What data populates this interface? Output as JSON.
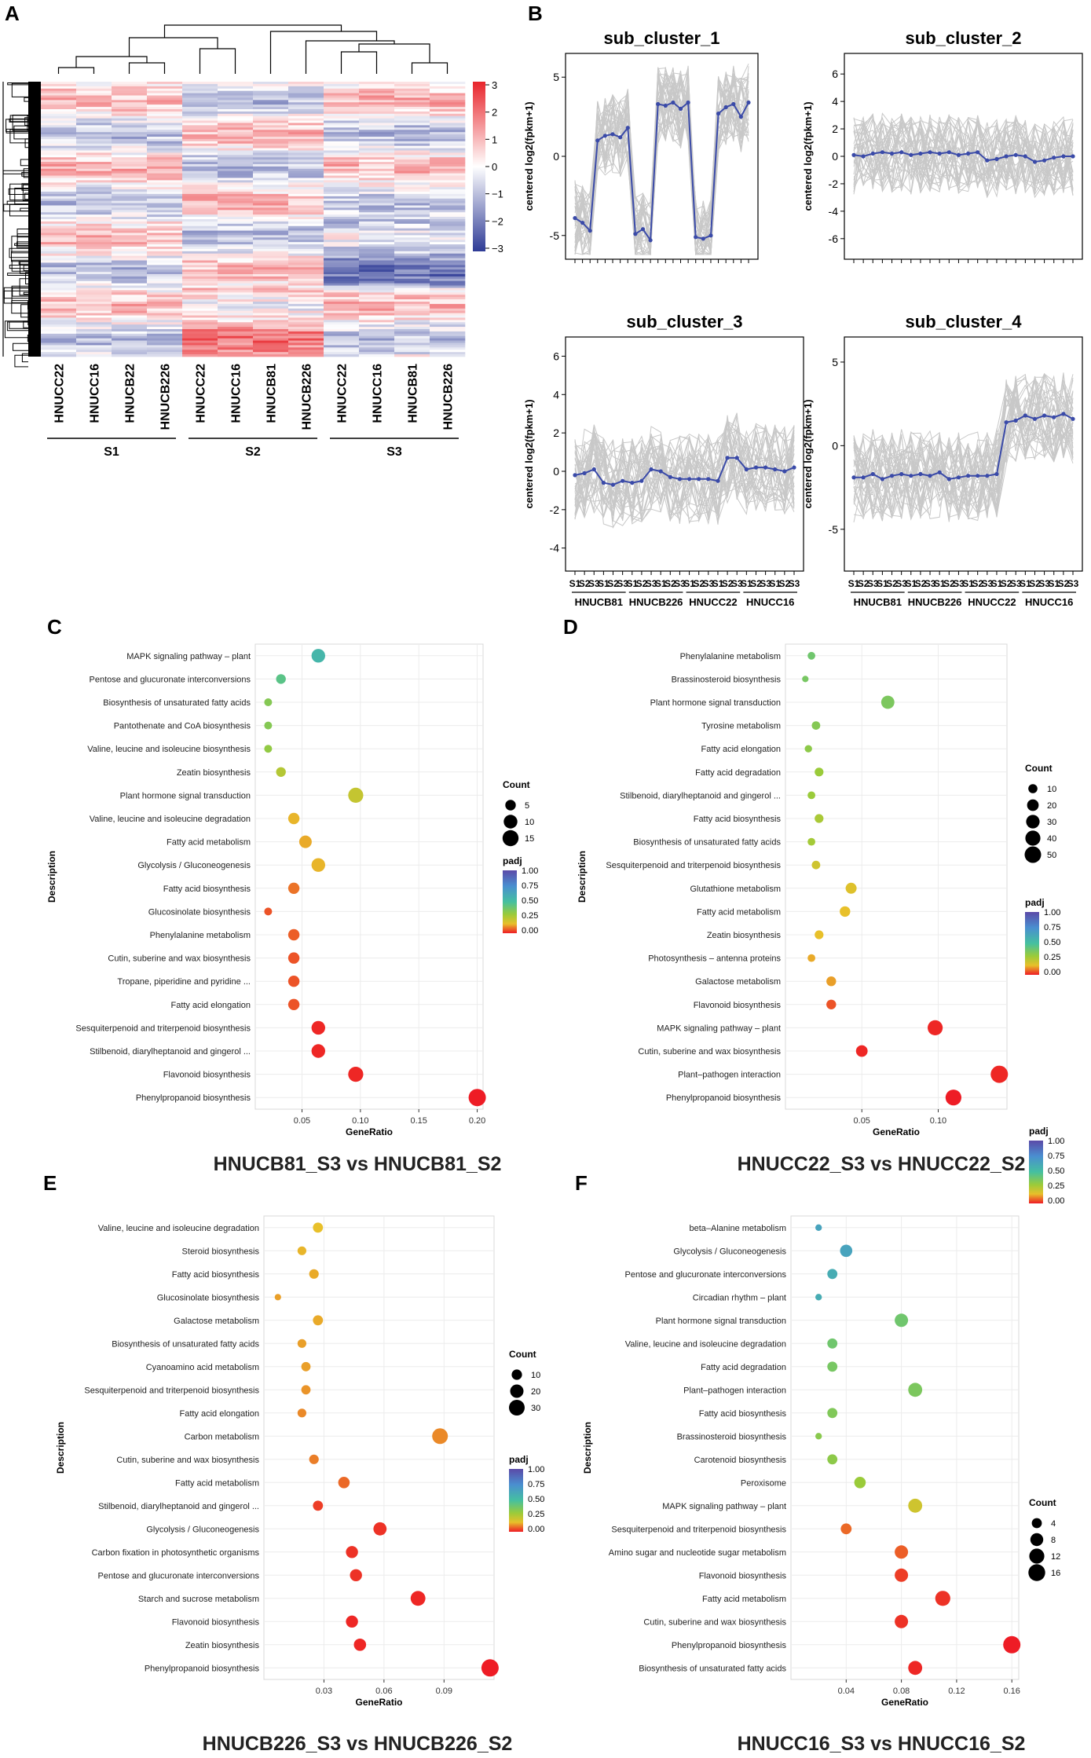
{
  "panels": {
    "A": {
      "label": "A",
      "samples": [
        "HNUCC22",
        "HNUCC16",
        "HNUCB22",
        "HNUCB226",
        "HNUCC22",
        "HNUCC16",
        "HNUCB81",
        "HNUCB226",
        "HNUCC22",
        "HNUCC16",
        "HNUCB81",
        "HNUCB226"
      ],
      "groups": [
        "S1",
        "S2",
        "S3"
      ],
      "scale_ticks": [
        "3",
        "2",
        "1",
        "0",
        "−1",
        "−2",
        "−3"
      ],
      "colors": {
        "high": "#e8252b",
        "mid": "#ffffff",
        "low": "#2e3b96"
      }
    },
    "B": {
      "label": "B",
      "ylabel": "centered log2(fpkm+1)",
      "stage_ticks": [
        "S1",
        "S2",
        "S3"
      ],
      "cultivars": [
        "HNUCB81",
        "HNUCB226",
        "HNUCC22",
        "HNUCC16"
      ],
      "line_color": "#3a4aa8",
      "bg_line_color": "#c8c8c8"
    }
  },
  "chart_data": [
    {
      "panel": "B",
      "type": "line",
      "title": "sub_cluster_1",
      "ylim": [
        -6.5,
        6.5
      ],
      "yticks": [
        -5,
        0,
        5
      ],
      "x": [
        1,
        2,
        3,
        4,
        5,
        6,
        7,
        8,
        9,
        10,
        11,
        12,
        13,
        14,
        15,
        16,
        17,
        18,
        19,
        20,
        21,
        22,
        23,
        24
      ],
      "values": [
        -3.9,
        -4.2,
        -4.7,
        1.0,
        1.3,
        1.4,
        1.2,
        1.8,
        -4.9,
        -4.6,
        -5.3,
        3.3,
        3.2,
        3.4,
        3.0,
        3.4,
        -5.1,
        -5.2,
        -5.0,
        2.7,
        3.1,
        3.3,
        2.5,
        3.4
      ]
    },
    {
      "panel": "B",
      "type": "line",
      "title": "sub_cluster_2",
      "ylim": [
        -7.5,
        7.5
      ],
      "yticks": [
        -6,
        -4,
        -2,
        0,
        2,
        4,
        6
      ],
      "x": [
        1,
        2,
        3,
        4,
        5,
        6,
        7,
        8,
        9,
        10,
        11,
        12,
        13,
        14,
        15,
        16,
        17,
        18,
        19,
        20,
        21,
        22,
        23,
        24
      ],
      "values": [
        0.1,
        0.0,
        0.2,
        0.3,
        0.2,
        0.3,
        0.1,
        0.2,
        0.3,
        0.2,
        0.3,
        0.1,
        0.2,
        0.3,
        -0.3,
        -0.2,
        0.0,
        0.1,
        0.0,
        -0.4,
        -0.3,
        -0.1,
        0.0,
        0.0
      ]
    },
    {
      "panel": "B",
      "type": "line",
      "title": "sub_cluster_3",
      "ylim": [
        -5.2,
        7
      ],
      "yticks": [
        -4,
        -2,
        0,
        2,
        4,
        6
      ],
      "x": [
        1,
        2,
        3,
        4,
        5,
        6,
        7,
        8,
        9,
        10,
        11,
        12,
        13,
        14,
        15,
        16,
        17,
        18,
        19,
        20,
        21,
        22,
        23,
        24
      ],
      "values": [
        -0.2,
        -0.1,
        0.1,
        -0.6,
        -0.7,
        -0.5,
        -0.6,
        -0.5,
        0.1,
        0.0,
        -0.3,
        -0.4,
        -0.4,
        -0.4,
        -0.4,
        -0.5,
        0.7,
        0.7,
        0.1,
        0.2,
        0.2,
        0.1,
        0.0,
        0.2
      ]
    },
    {
      "panel": "B",
      "type": "line",
      "title": "sub_cluster_4",
      "ylim": [
        -7.5,
        6.5
      ],
      "yticks": [
        -5,
        0,
        5
      ],
      "x": [
        1,
        2,
        3,
        4,
        5,
        6,
        7,
        8,
        9,
        10,
        11,
        12,
        13,
        14,
        15,
        16,
        17,
        18,
        19,
        20,
        21,
        22,
        23,
        24
      ],
      "values": [
        -1.9,
        -1.9,
        -1.7,
        -2.0,
        -1.8,
        -1.7,
        -1.8,
        -1.7,
        -1.8,
        -1.6,
        -2.0,
        -1.9,
        -1.8,
        -1.8,
        -1.8,
        -1.7,
        1.4,
        1.5,
        1.8,
        1.6,
        1.8,
        1.7,
        1.9,
        1.6
      ]
    },
    {
      "panel": "C",
      "type": "scatter",
      "title": "HNUCB81_S3 vs HNUCB81_S2",
      "xlabel": "GeneRatio",
      "ylabel": "Description",
      "xlim": [
        0.01,
        0.205
      ],
      "xticks": [
        0.05,
        0.1,
        0.15,
        0.2
      ],
      "xtick_labels": [
        "0.05",
        "0.10",
        "0.15",
        "0.20"
      ],
      "legend_count": {
        "title": "Count",
        "values": [
          5,
          10,
          15
        ]
      },
      "legend_padj": {
        "title": "padj",
        "ticks": [
          "1.00",
          "0.75",
          "0.50",
          "0.25",
          "0.00"
        ]
      },
      "terms": [
        {
          "name": "MAPK signaling pathway – plant",
          "x": 0.064,
          "count": 10,
          "padj": 0.55
        },
        {
          "name": "Pentose and glucuronate interconversions",
          "x": 0.032,
          "count": 4,
          "padj": 0.45
        },
        {
          "name": "Biosynthesis of unsaturated fatty acids",
          "x": 0.021,
          "count": 2,
          "padj": 0.35
        },
        {
          "name": "Pantothenate and CoA biosynthesis",
          "x": 0.021,
          "count": 2,
          "padj": 0.35
        },
        {
          "name": "Valine, leucine and isoleucine biosynthesis",
          "x": 0.021,
          "count": 2,
          "padj": 0.32
        },
        {
          "name": "Zeatin biosynthesis",
          "x": 0.032,
          "count": 4,
          "padj": 0.25
        },
        {
          "name": "Plant hormone signal transduction",
          "x": 0.096,
          "count": 13,
          "padj": 0.22
        },
        {
          "name": "Valine, leucine and isoleucine degradation",
          "x": 0.043,
          "count": 6,
          "padj": 0.14
        },
        {
          "name": "Fatty acid metabolism",
          "x": 0.053,
          "count": 8,
          "padj": 0.13
        },
        {
          "name": "Glycolysis / Gluconeogenesis",
          "x": 0.064,
          "count": 10,
          "padj": 0.14
        },
        {
          "name": "Fatty acid biosynthesis",
          "x": 0.043,
          "count": 6,
          "padj": 0.08
        },
        {
          "name": "Glucosinolate biosynthesis",
          "x": 0.021,
          "count": 2,
          "padj": 0.05
        },
        {
          "name": "Phenylalanine metabolism",
          "x": 0.043,
          "count": 6,
          "padj": 0.06
        },
        {
          "name": "Cutin, suberine and wax biosynthesis",
          "x": 0.043,
          "count": 6,
          "padj": 0.05
        },
        {
          "name": "Tropane, piperidine and pyridine ...",
          "x": 0.043,
          "count": 6,
          "padj": 0.05
        },
        {
          "name": "Fatty acid elongation",
          "x": 0.043,
          "count": 6,
          "padj": 0.05
        },
        {
          "name": "Sesquiterpenoid and triterpenoid biosynthesis",
          "x": 0.064,
          "count": 10,
          "padj": 0.01
        },
        {
          "name": "Stilbenoid, diarylheptanoid and gingerol ...",
          "x": 0.064,
          "count": 10,
          "padj": 0.01
        },
        {
          "name": "Flavonoid biosynthesis",
          "x": 0.096,
          "count": 13,
          "padj": 0.01
        },
        {
          "name": "Phenylpropanoid biosynthesis",
          "x": 0.2,
          "count": 18,
          "padj": 0.0
        }
      ]
    },
    {
      "panel": "D",
      "type": "scatter",
      "title": "HNUCC22_S3 vs HNUCC22_S2",
      "xlabel": "GeneRatio",
      "ylabel": "Description",
      "xlim": [
        0.0,
        0.145
      ],
      "xticks": [
        0.05,
        0.1
      ],
      "xtick_labels": [
        "0.05",
        "0.10"
      ],
      "legend_count": {
        "title": "Count",
        "values": [
          10,
          20,
          30,
          40,
          50
        ]
      },
      "legend_padj": {
        "title": "padj",
        "ticks": [
          "1.00",
          "0.75",
          "0.50",
          "0.25",
          "0.00"
        ]
      },
      "terms": [
        {
          "name": "Phenylalanine metabolism",
          "x": 0.017,
          "count": 6,
          "padj": 0.4
        },
        {
          "name": "Brassinosteroid biosynthesis",
          "x": 0.013,
          "count": 3,
          "padj": 0.38
        },
        {
          "name": "Plant hormone signal transduction",
          "x": 0.067,
          "count": 28,
          "padj": 0.37
        },
        {
          "name": "Tyrosine metabolism",
          "x": 0.02,
          "count": 8,
          "padj": 0.35
        },
        {
          "name": "Fatty acid elongation",
          "x": 0.015,
          "count": 5,
          "padj": 0.33
        },
        {
          "name": "Fatty acid degradation",
          "x": 0.022,
          "count": 9,
          "padj": 0.3
        },
        {
          "name": "Stilbenoid, diarylheptanoid and gingerol ...",
          "x": 0.017,
          "count": 6,
          "padj": 0.3
        },
        {
          "name": "Fatty acid biosynthesis",
          "x": 0.022,
          "count": 9,
          "padj": 0.27
        },
        {
          "name": "Biosynthesis of unsaturated fatty acids",
          "x": 0.017,
          "count": 6,
          "padj": 0.28
        },
        {
          "name": "Sesquiterpenoid and triterpenoid biosynthesis",
          "x": 0.02,
          "count": 8,
          "padj": 0.2
        },
        {
          "name": "Glutathione metabolism",
          "x": 0.043,
          "count": 17,
          "padj": 0.17
        },
        {
          "name": "Fatty acid metabolism",
          "x": 0.039,
          "count": 15,
          "padj": 0.15
        },
        {
          "name": "Zeatin biosynthesis",
          "x": 0.022,
          "count": 9,
          "padj": 0.15
        },
        {
          "name": "Photosynthesis – antenna proteins",
          "x": 0.017,
          "count": 6,
          "padj": 0.13
        },
        {
          "name": "Galactose metabolism",
          "x": 0.03,
          "count": 12,
          "padj": 0.12
        },
        {
          "name": "Flavonoid biosynthesis",
          "x": 0.03,
          "count": 12,
          "padj": 0.05
        },
        {
          "name": "MAPK signaling pathway – plant",
          "x": 0.098,
          "count": 40,
          "padj": 0.01
        },
        {
          "name": "Cutin, suberine and wax biosynthesis",
          "x": 0.05,
          "count": 20,
          "padj": 0.01
        },
        {
          "name": "Plant–pathogen interaction",
          "x": 0.14,
          "count": 56,
          "padj": 0.01
        },
        {
          "name": "Phenylpropanoid biosynthesis",
          "x": 0.11,
          "count": 45,
          "padj": 0.0
        }
      ]
    },
    {
      "panel": "E",
      "type": "scatter",
      "title": "HNUCB226_S3 vs HNUCB226_S2",
      "xlabel": "GeneRatio",
      "ylabel": "Description",
      "xlim": [
        0.0,
        0.115
      ],
      "xticks": [
        0.03,
        0.06,
        0.09
      ],
      "xtick_labels": [
        "0.03",
        "0.06",
        "0.09"
      ],
      "legend_count": {
        "title": "Count",
        "values": [
          10,
          20,
          30
        ]
      },
      "legend_padj": {
        "title": "padj",
        "ticks": [
          "1.00",
          "0.75",
          "0.50",
          "0.25",
          "0.00"
        ]
      },
      "terms": [
        {
          "name": "Valine, leucine and isoleucine degradation",
          "x": 0.027,
          "count": 9,
          "padj": 0.15
        },
        {
          "name": "Steroid biosynthesis",
          "x": 0.019,
          "count": 6,
          "padj": 0.14
        },
        {
          "name": "Fatty acid biosynthesis",
          "x": 0.025,
          "count": 8,
          "padj": 0.13
        },
        {
          "name": "Glucosinolate biosynthesis",
          "x": 0.007,
          "count": 2,
          "padj": 0.12
        },
        {
          "name": "Galactose metabolism",
          "x": 0.027,
          "count": 9,
          "padj": 0.13
        },
        {
          "name": "Biosynthesis of unsaturated fatty acids",
          "x": 0.019,
          "count": 6,
          "padj": 0.12
        },
        {
          "name": "Cyanoamino acid metabolism",
          "x": 0.021,
          "count": 7,
          "padj": 0.12
        },
        {
          "name": "Sesquiterpenoid and triterpenoid biosynthesis",
          "x": 0.021,
          "count": 7,
          "padj": 0.11
        },
        {
          "name": "Fatty acid elongation",
          "x": 0.019,
          "count": 6,
          "padj": 0.1
        },
        {
          "name": "Carbon metabolism",
          "x": 0.088,
          "count": 30,
          "padj": 0.1
        },
        {
          "name": "Cutin, suberine and wax biosynthesis",
          "x": 0.025,
          "count": 8,
          "padj": 0.09
        },
        {
          "name": "Fatty acid metabolism",
          "x": 0.04,
          "count": 13,
          "padj": 0.07
        },
        {
          "name": "Stilbenoid, diarylheptanoid and gingerol ...",
          "x": 0.027,
          "count": 9,
          "padj": 0.03
        },
        {
          "name": "Glycolysis / Gluconeogenesis",
          "x": 0.058,
          "count": 19,
          "padj": 0.02
        },
        {
          "name": "Carbon fixation in photosynthetic organisms",
          "x": 0.044,
          "count": 15,
          "padj": 0.02
        },
        {
          "name": "Pentose and glucuronate interconversions",
          "x": 0.046,
          "count": 15,
          "padj": 0.02
        },
        {
          "name": "Starch and sucrose metabolism",
          "x": 0.077,
          "count": 26,
          "padj": 0.01
        },
        {
          "name": "Flavonoid biosynthesis",
          "x": 0.044,
          "count": 15,
          "padj": 0.01
        },
        {
          "name": "Zeatin biosynthesis",
          "x": 0.048,
          "count": 16,
          "padj": 0.01
        },
        {
          "name": "Phenylpropanoid biosynthesis",
          "x": 0.113,
          "count": 38,
          "padj": 0.0
        }
      ]
    },
    {
      "panel": "F",
      "type": "scatter",
      "title": "HNUCC16_S3 vs HNUCC16_S2",
      "xlabel": "GeneRatio",
      "ylabel": "Description",
      "xlim": [
        0.0,
        0.165
      ],
      "xticks": [
        0.04,
        0.08,
        0.12,
        0.16
      ],
      "xtick_labels": [
        "0.04",
        "0.08",
        "0.12",
        "0.16"
      ],
      "legend_count": {
        "title": "Count",
        "values": [
          4,
          8,
          12,
          16
        ]
      },
      "legend_padj": {
        "title": "padj",
        "ticks": [
          "1.00",
          "0.75",
          "0.50",
          "0.25",
          "0.00"
        ]
      },
      "terms": [
        {
          "name": "beta–Alanine metabolism",
          "x": 0.02,
          "count": 1,
          "padj": 0.65
        },
        {
          "name": "Glycolysis / Gluconeogenesis",
          "x": 0.04,
          "count": 7,
          "padj": 0.65
        },
        {
          "name": "Pentose and glucuronate interconversions",
          "x": 0.03,
          "count": 4,
          "padj": 0.6
        },
        {
          "name": "Circadian rhythm – plant",
          "x": 0.02,
          "count": 1,
          "padj": 0.6
        },
        {
          "name": "Plant hormone signal transduction",
          "x": 0.08,
          "count": 9,
          "padj": 0.4
        },
        {
          "name": "Valine, leucine and isoleucine degradation",
          "x": 0.03,
          "count": 4,
          "padj": 0.4
        },
        {
          "name": "Fatty acid degradation",
          "x": 0.03,
          "count": 4,
          "padj": 0.38
        },
        {
          "name": "Plant–pathogen interaction",
          "x": 0.09,
          "count": 10,
          "padj": 0.37
        },
        {
          "name": "Fatty acid biosynthesis",
          "x": 0.03,
          "count": 4,
          "padj": 0.36
        },
        {
          "name": "Brassinosteroid biosynthesis",
          "x": 0.02,
          "count": 1,
          "padj": 0.34
        },
        {
          "name": "Carotenoid biosynthesis",
          "x": 0.03,
          "count": 4,
          "padj": 0.33
        },
        {
          "name": "Peroxisome",
          "x": 0.05,
          "count": 6,
          "padj": 0.3
        },
        {
          "name": "MAPK signaling pathway – plant",
          "x": 0.09,
          "count": 10,
          "padj": 0.2
        },
        {
          "name": "Sesquiterpenoid and triterpenoid biosynthesis",
          "x": 0.04,
          "count": 5,
          "padj": 0.07
        },
        {
          "name": "Amino sugar and nucleotide sugar metabolism",
          "x": 0.08,
          "count": 9,
          "padj": 0.06
        },
        {
          "name": "Flavonoid biosynthesis",
          "x": 0.08,
          "count": 9,
          "padj": 0.03
        },
        {
          "name": "Fatty acid metabolism",
          "x": 0.11,
          "count": 12,
          "padj": 0.02
        },
        {
          "name": "Cutin, suberine and wax biosynthesis",
          "x": 0.08,
          "count": 9,
          "padj": 0.02
        },
        {
          "name": "Phenylpropanoid biosynthesis",
          "x": 0.16,
          "count": 17,
          "padj": 0.0
        },
        {
          "name": "Biosynthesis of unsaturated fatty acids",
          "x": 0.09,
          "count": 10,
          "padj": 0.01
        }
      ]
    }
  ]
}
